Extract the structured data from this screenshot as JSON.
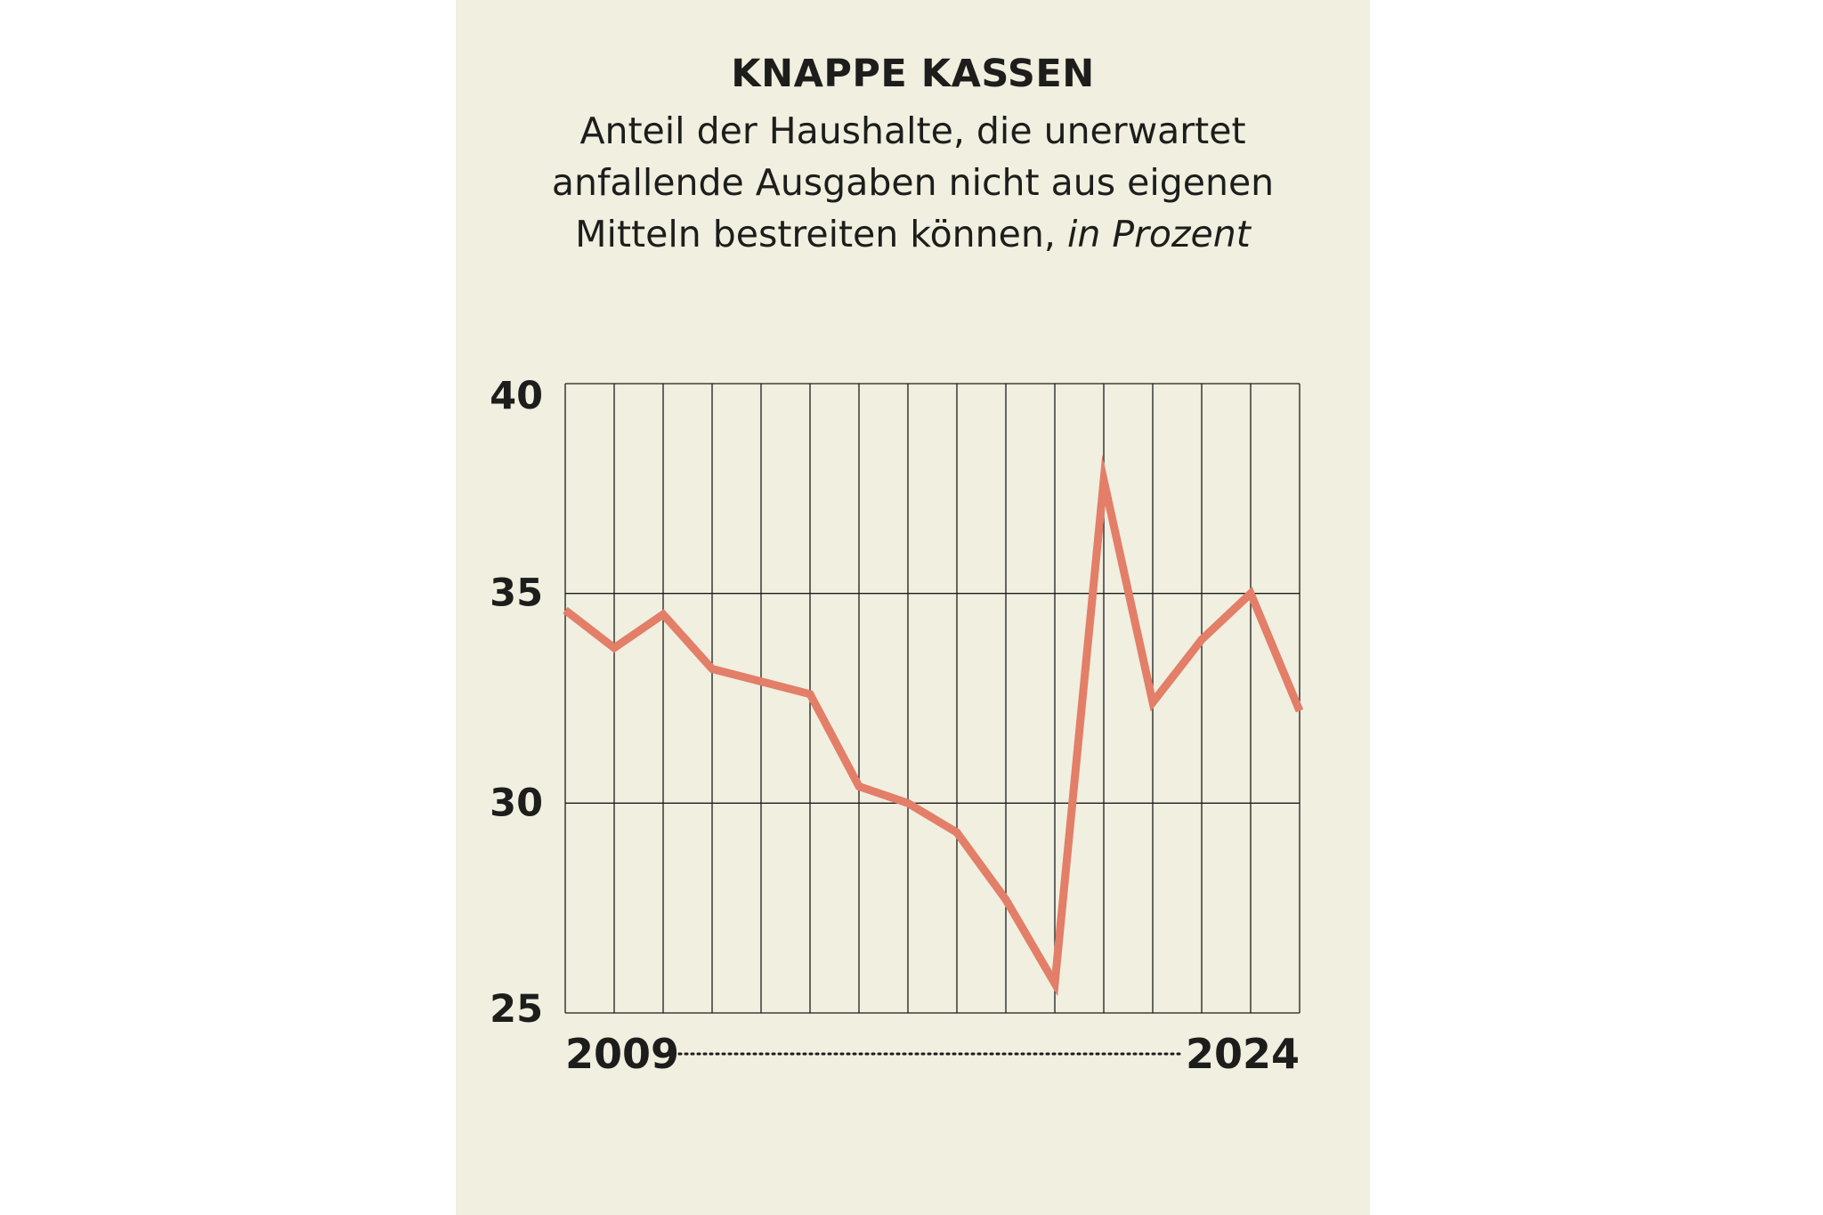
{
  "chart_data": {
    "type": "line",
    "title": "KNAPPE KASSEN",
    "subtitle": "Anteil der Haushalte, die unerwartet anfallende Ausgaben nicht aus eigenen Mitteln bestreiten können,",
    "unit_label": "in Prozent",
    "x": [
      2009,
      2010,
      2011,
      2012,
      2013,
      2014,
      2015,
      2016,
      2017,
      2018,
      2019,
      2020,
      2021,
      2022,
      2023,
      2024
    ],
    "series": [
      {
        "name": "Anteil der Haushalte",
        "values": [
          34.6,
          33.7,
          34.5,
          33.2,
          32.9,
          32.6,
          30.4,
          30.0,
          29.3,
          27.7,
          25.7,
          37.7,
          32.4,
          33.9,
          35.0,
          32.2
        ]
      }
    ],
    "ylim": [
      25,
      40
    ],
    "yticks": [
      25,
      30,
      35,
      40
    ],
    "xtick_labels": [
      "2009",
      "2024"
    ],
    "grid": true,
    "line_color": "#e37e68"
  }
}
